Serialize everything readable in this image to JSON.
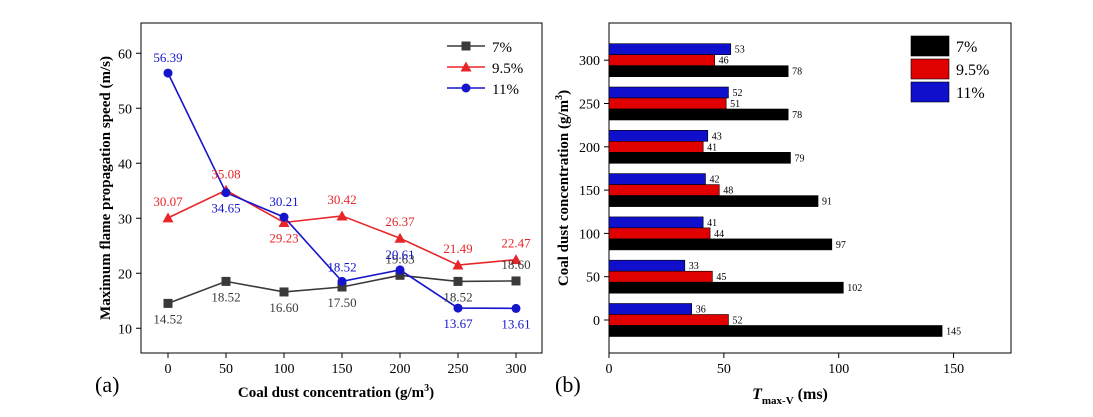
{
  "chart_data": [
    {
      "type": "line",
      "panel_label": "(a)",
      "title": "",
      "xlabel": "Coal dust concentration (g/m",
      "xlabel_sup": "3",
      "xlabel_end": ")",
      "ylabel": "Maximum flame propagation speed (m/s)",
      "x": [
        0,
        50,
        100,
        150,
        200,
        250,
        300
      ],
      "x_ticks": [
        "0",
        "50",
        "100",
        "150",
        "200",
        "250",
        "300"
      ],
      "y_ticks": [
        "10",
        "20",
        "30",
        "40",
        "50",
        "60"
      ],
      "ylim": [
        5.5,
        65.5
      ],
      "legend_position": "top-right",
      "series": [
        {
          "name": "7%",
          "color": "#3a3a3a",
          "marker": "square",
          "values": [
            14.52,
            18.52,
            16.6,
            17.5,
            19.63,
            18.52,
            18.6
          ],
          "labels": [
            "14.52",
            "18.52",
            "16.60",
            "17.50",
            "19.63",
            "18.52",
            "18.60"
          ]
        },
        {
          "name": "9.5%",
          "color": "#e8262a",
          "marker": "triangle",
          "values": [
            30.07,
            35.08,
            29.23,
            30.42,
            26.37,
            21.49,
            22.47
          ],
          "labels": [
            "30.07",
            "35.08",
            "29.23",
            "30.42",
            "26.37",
            "21.49",
            "22.47"
          ]
        },
        {
          "name": "11%",
          "color": "#1515cc",
          "marker": "circle",
          "values": [
            56.39,
            34.65,
            30.21,
            18.52,
            20.61,
            13.67,
            13.61
          ],
          "labels": [
            "56.39",
            "34.65",
            "30.21",
            "18.52",
            "20.61",
            "13.67",
            "13.61"
          ]
        }
      ]
    },
    {
      "type": "bar",
      "orientation": "horizontal",
      "panel_label": "(b)",
      "title": "",
      "xlabel_main": "T",
      "xlabel_sub": "max-V",
      "xlabel_unit": " (ms)",
      "ylabel": "Coal dust concentration (g/m",
      "ylabel_sup": "3",
      "ylabel_end": ")",
      "categories": [
        "0",
        "50",
        "100",
        "150",
        "200",
        "250",
        "300"
      ],
      "x_ticks": [
        "0",
        "50",
        "100",
        "150"
      ],
      "xlim": [
        0,
        175
      ],
      "legend_position": "top-right",
      "series": [
        {
          "name": "7%",
          "color": "#000000",
          "values": [
            145,
            102,
            97,
            91,
            79,
            78,
            78
          ],
          "labels": [
            "145",
            "102",
            "97",
            "91",
            "79",
            "78",
            "78"
          ]
        },
        {
          "name": "9.5%",
          "color": "#e00000",
          "values": [
            52,
            45,
            44,
            48,
            41,
            51,
            46
          ],
          "labels": [
            "52",
            "45",
            "44",
            "48",
            "41",
            "51",
            "46"
          ]
        },
        {
          "name": "11%",
          "color": "#1010cc",
          "values": [
            36,
            33,
            41,
            42,
            43,
            52,
            53
          ],
          "labels": [
            "36",
            "33",
            "41",
            "42",
            "43",
            "52",
            "53"
          ]
        }
      ]
    }
  ]
}
